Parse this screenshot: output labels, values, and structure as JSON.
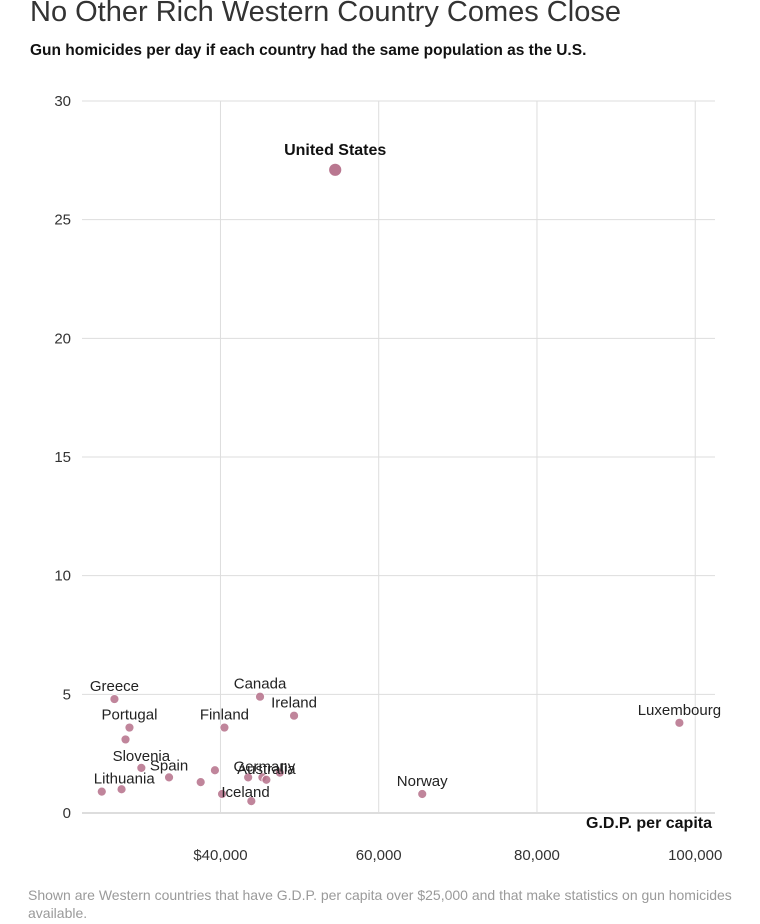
{
  "header": {
    "title": "No Other Rich Western Country Comes Close",
    "subtitle": "Gun homicides per day if each country had the same population as the U.S."
  },
  "footer": {
    "note": "Shown are Western countries that have G.D.P. per capita over $25,000 and that make statistics on gun homicides available."
  },
  "chart_data": {
    "type": "scatter",
    "title": "No Other Rich Western Country Comes Close",
    "subtitle": "Gun homicides per day if each country had the same population as the U.S.",
    "xlabel": "G.D.P. per capita",
    "ylabel": "",
    "xlim": [
      22500,
      102500
    ],
    "ylim": [
      0,
      30
    ],
    "x_ticks": [
      40000,
      60000,
      80000,
      100000
    ],
    "x_tick_labels": [
      "$40,000",
      "60,000",
      "80,000",
      "100,000"
    ],
    "y_ticks": [
      0,
      5,
      10,
      15,
      20,
      25,
      30
    ],
    "y_tick_labels": [
      "0",
      "5",
      "10",
      "15",
      "20",
      "25",
      "30"
    ],
    "grid": true,
    "color": "#b5708a",
    "points": [
      {
        "name": "United States",
        "x": 54500,
        "y": 27.1,
        "label": "United States",
        "highlight": true
      },
      {
        "name": "Greece",
        "x": 26600,
        "y": 4.8,
        "label": "Greece"
      },
      {
        "name": "Canada",
        "x": 45000,
        "y": 4.9,
        "label": "Canada"
      },
      {
        "name": "Ireland",
        "x": 49300,
        "y": 4.1,
        "label": "Ireland"
      },
      {
        "name": "Portugal",
        "x": 28500,
        "y": 3.6,
        "label": "Portugal"
      },
      {
        "name": "Finland",
        "x": 40500,
        "y": 3.6,
        "label": "Finland"
      },
      {
        "name": "Luxembourg",
        "x": 98000,
        "y": 3.8,
        "label": "Luxembourg"
      },
      {
        "name": "",
        "x": 28000,
        "y": 3.1,
        "label": ""
      },
      {
        "name": "Slovenia",
        "x": 30000,
        "y": 1.9,
        "label": "Slovenia"
      },
      {
        "name": "Spain",
        "x": 33500,
        "y": 1.5,
        "label": "Spain"
      },
      {
        "name": "",
        "x": 39300,
        "y": 1.8,
        "label": ""
      },
      {
        "name": "",
        "x": 37500,
        "y": 1.3,
        "label": ""
      },
      {
        "name": "Germany",
        "x": 45300,
        "y": 1.5,
        "label": "Germany"
      },
      {
        "name": "Australia",
        "x": 45800,
        "y": 1.4,
        "label": "Australia"
      },
      {
        "name": "",
        "x": 43500,
        "y": 1.5,
        "label": ""
      },
      {
        "name": "",
        "x": 47500,
        "y": 1.7,
        "label": ""
      },
      {
        "name": "Lithuania",
        "x": 25000,
        "y": 0.9,
        "label": "Lithuania"
      },
      {
        "name": "",
        "x": 27500,
        "y": 1.0,
        "label": ""
      },
      {
        "name": "Iceland",
        "x": 43900,
        "y": 0.5,
        "label": "Iceland"
      },
      {
        "name": "",
        "x": 40200,
        "y": 0.8,
        "label": ""
      },
      {
        "name": "Norway",
        "x": 65500,
        "y": 0.8,
        "label": "Norway"
      }
    ]
  }
}
